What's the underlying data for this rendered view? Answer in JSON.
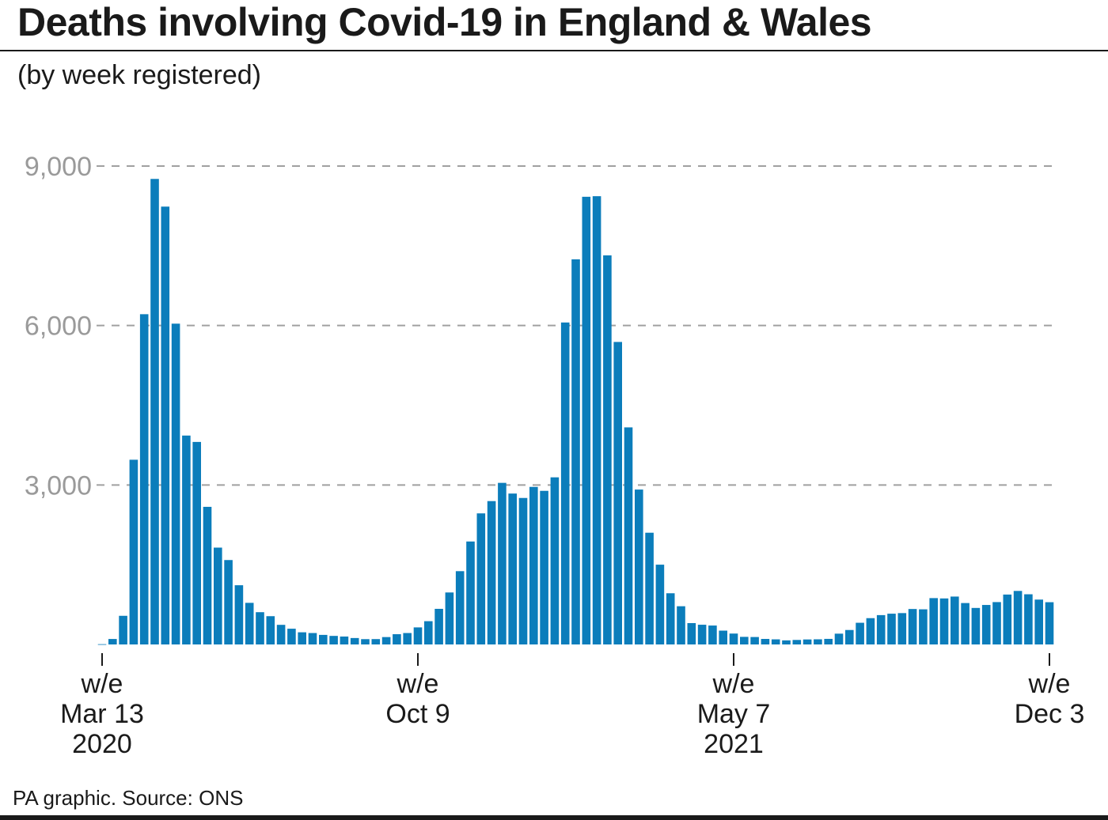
{
  "title": "Deaths involving Covid-19 in England & Wales",
  "subtitle": "(by week registered)",
  "source": "PA graphic. Source: ONS",
  "colors": {
    "bar": "#0b7dbb",
    "grid": "#a0a0a0",
    "text": "#1a1a1a",
    "axis_label": "#9a9a9a"
  },
  "chart_data": {
    "type": "bar",
    "title": "Deaths involving Covid-19 in England & Wales",
    "subtitle": "(by week registered)",
    "xlabel": "",
    "ylabel": "",
    "ylim": [
      0,
      9000
    ],
    "yticks": [
      {
        "value": 3000,
        "label": "3,000"
      },
      {
        "value": 6000,
        "label": "6,000"
      },
      {
        "value": 9000,
        "label": "9,000"
      }
    ],
    "grid": "horizontal dashed",
    "xticks": [
      {
        "index": 0,
        "lines": [
          "w/e",
          "Mar 13",
          "2020"
        ]
      },
      {
        "index": 30,
        "lines": [
          "w/e",
          "Oct 9"
        ]
      },
      {
        "index": 60,
        "lines": [
          "w/e",
          "May 7",
          "2021"
        ]
      },
      {
        "index": 90,
        "lines": [
          "w/e",
          "Dec 3"
        ]
      }
    ],
    "values": [
      5,
      103,
      539,
      3475,
      6213,
      8758,
      8237,
      6035,
      3930,
      3810,
      2589,
      1822,
      1588,
      1114,
      783,
      607,
      532,
      369,
      296,
      229,
      215,
      180,
      161,
      149,
      121,
      100,
      101,
      139,
      193,
      215,
      321,
      438,
      670,
      978,
      1379,
      1937,
      2466,
      2697,
      3040,
      2839,
      2756,
      2964,
      2890,
      3144,
      6057,
      7245,
      8422,
      8433,
      7320,
      5691,
      4084,
      2914,
      2102,
      1501,
      963,
      719,
      402,
      371,
      356,
      260,
      205,
      143,
      140,
      104,
      96,
      77,
      85,
      94,
      97,
      105,
      203,
      272,
      408,
      495,
      552,
      579,
      590,
      667,
      661,
      872,
      866,
      901,
      779,
      687,
      743,
      797,
      939,
      1007,
      944,
      844,
      795
    ]
  }
}
